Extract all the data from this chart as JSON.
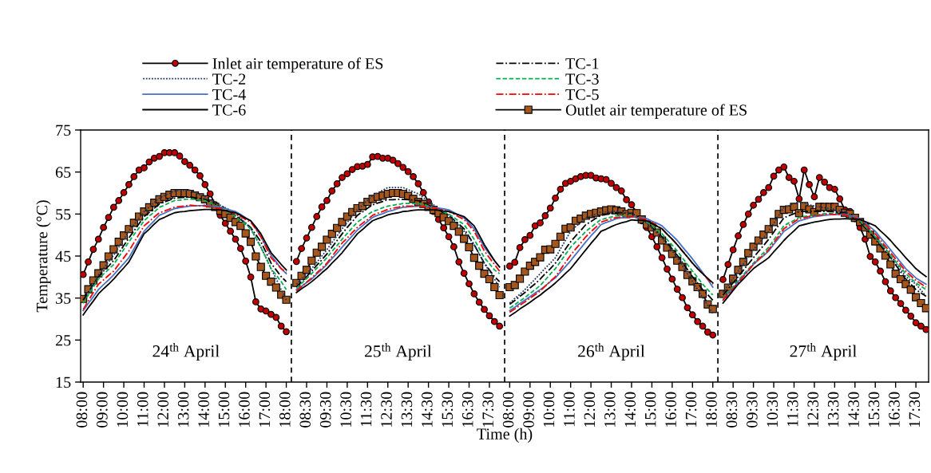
{
  "chart_data": {
    "type": "line",
    "xlabel": "Time (h)",
    "ylabel": "Temperature (°C)",
    "categories": [
      "08:00",
      null,
      null,
      null,
      "09:00",
      null,
      null,
      null,
      "10:00",
      null,
      null,
      null,
      "11:00",
      null,
      null,
      null,
      "12:00",
      null,
      null,
      null,
      "13:00",
      null,
      null,
      null,
      "14:00",
      null,
      null,
      null,
      "15:00",
      null,
      null,
      null,
      "16:00",
      null,
      null,
      null,
      "17:00",
      null,
      null,
      null,
      "18:00",
      null,
      null,
      null,
      "08:30",
      null,
      null,
      null,
      "09:30",
      null,
      null,
      null,
      "10:30",
      null,
      null,
      null,
      "11:30",
      null,
      null,
      null,
      "12:30",
      null,
      null,
      null,
      "13:30",
      null,
      null,
      null,
      "14:30",
      null,
      null,
      null,
      "15:30",
      null,
      null,
      null,
      "16:30",
      null,
      null,
      null,
      "17:30",
      null,
      null,
      null,
      "08:00",
      null,
      null,
      null,
      "09:00",
      null,
      null,
      null,
      "10:00",
      null,
      null,
      null,
      "11:00",
      null,
      null,
      null,
      "12:00",
      null,
      null,
      null,
      "13:00",
      null,
      null,
      null,
      "14:00",
      null,
      null,
      null,
      "15:00",
      null,
      null,
      null,
      "16:00",
      null,
      null,
      null,
      "17:00",
      null,
      null,
      null,
      "18:00",
      null,
      null,
      null,
      "08:30",
      null,
      null,
      null,
      "09:30",
      null,
      null,
      null,
      "10:30",
      null,
      null,
      null,
      "11:30",
      null,
      null,
      null,
      "12:30",
      null,
      null,
      null,
      "13:30",
      null,
      null,
      null,
      "14:30",
      null,
      null,
      null,
      "15:30",
      null,
      null,
      null,
      "16:30",
      null,
      null,
      null,
      "17:30",
      null,
      null
    ],
    "ylim": [
      15,
      75
    ],
    "yticks": [
      15,
      25,
      35,
      45,
      55,
      65,
      75
    ],
    "grid": false,
    "legend": "top",
    "annotations": [
      "24$^{th}$ April",
      "25$^{th}$ April",
      "26$^{th}$ April",
      "27$^{th}$ April"
    ],
    "series": [
      {
        "name": "Inlet air temperature of ES",
        "color": "#c00000",
        "marker": "circle",
        "line_style": "solid",
        "values": [
          40.6,
          43.6,
          46.6,
          49.0,
          51.8,
          54.2,
          56.6,
          58.2,
          60.1,
          62.0,
          63.9,
          65.5,
          66.0,
          67.4,
          68.3,
          68.7,
          69.6,
          69.6,
          69.6,
          68.8,
          67.5,
          66.6,
          65.5,
          64.1,
          62.0,
          59.8,
          57.2,
          54.7,
          52.8,
          50.9,
          49.0,
          46.8,
          43.8,
          40.0,
          34.1,
          32.4,
          31.9,
          31.1,
          30.4,
          28.3,
          27.0,
          null,
          43.7,
          46.8,
          49.3,
          51.8,
          54.4,
          56.7,
          58.2,
          60.5,
          62.2,
          63.7,
          64.6,
          65.6,
          66.3,
          66.4,
          66.8,
          68.6,
          68.7,
          68.3,
          68.3,
          67.8,
          67.0,
          66.1,
          65.1,
          63.9,
          62.2,
          60.1,
          57.9,
          55.6,
          53.7,
          51.7,
          49.6,
          47.2,
          43.6,
          40.9,
          38.4,
          36.0,
          34.0,
          32.3,
          30.8,
          29.4,
          28.3,
          null,
          42.6,
          43.5,
          47.0,
          48.9,
          49.9,
          52.2,
          52.9,
          54.6,
          56.4,
          58.8,
          60.9,
          62.3,
          62.8,
          63.4,
          63.9,
          64.2,
          64.2,
          63.6,
          63.4,
          63.2,
          62.3,
          61.3,
          60.5,
          58.4,
          57.2,
          55.3,
          53.4,
          51.8,
          49.6,
          47.2,
          44.6,
          41.9,
          39.5,
          37.1,
          35.1,
          32.7,
          31.0,
          29.4,
          28.3,
          26.9,
          26.2,
          null,
          39.4,
          43.0,
          46.5,
          49.8,
          52.5,
          55.0,
          57.1,
          58.5,
          60.1,
          61.3,
          64.0,
          65.5,
          66.2,
          63.7,
          62.8,
          58.6,
          65.5,
          62.0,
          59.1,
          63.7,
          62.6,
          61.3,
          60.9,
          58.6,
          56.0,
          55.6,
          53.9,
          51.8,
          49.0,
          44.9,
          43.6,
          41.4,
          38.9,
          36.7,
          35.1,
          33.7,
          32.1,
          30.7,
          29.1,
          28.3,
          27.5
        ]
      },
      {
        "name": "TC-1",
        "color": "#000000",
        "marker": "none",
        "line_style": "dashdot",
        "values": [
          34.5,
          36.4,
          38.2,
          40.1,
          41.4,
          42.6,
          43.9,
          45.7,
          47.5,
          49.3,
          51.0,
          52.7,
          54.4,
          55.4,
          56.4,
          57.4,
          57.9,
          58.3,
          58.8,
          58.9,
          59.0,
          59.1,
          58.9,
          58.7,
          58.5,
          57.9,
          57.2,
          56.6,
          56.0,
          55.3,
          54.7,
          53.7,
          52.8,
          51.8,
          50.1,
          48.4,
          45.9,
          43.3,
          41.7,
          40.1,
          38.9,
          null,
          37.6,
          38.9,
          40.1,
          41.4,
          42.8,
          44.1,
          45.5,
          47.1,
          48.7,
          50.3,
          51.8,
          53.2,
          54.7,
          55.5,
          56.4,
          57.2,
          57.6,
          58.0,
          58.4,
          58.4,
          58.5,
          58.5,
          58.4,
          58.3,
          58.2,
          57.7,
          57.1,
          56.6,
          56.0,
          55.3,
          54.7,
          53.6,
          52.6,
          51.5,
          49.6,
          47.7,
          45.5,
          43.3,
          41.7,
          40.1,
          38.9,
          null,
          33.5,
          34.4,
          35.4,
          36.3,
          37.4,
          38.4,
          39.5,
          40.8,
          42.0,
          43.3,
          45.0,
          46.7,
          48.4,
          49.8,
          51.1,
          52.5,
          53.2,
          54.0,
          54.7,
          54.9,
          55.1,
          55.3,
          55.3,
          55.2,
          55.2,
          54.5,
          53.8,
          53.1,
          51.9,
          50.8,
          49.6,
          48.1,
          46.7,
          45.2,
          43.5,
          41.8,
          40.1,
          38.6,
          37.0,
          35.8,
          34.5,
          null,
          35.7,
          37.2,
          38.6,
          40.1,
          41.6,
          43.1,
          44.6,
          46.1,
          47.5,
          49.0,
          50.7,
          52.4,
          54.1,
          54.6,
          55.1,
          55.6,
          55.6,
          55.6,
          55.6,
          55.6,
          55.6,
          55.6,
          55.5,
          55.4,
          55.3,
          54.6,
          53.8,
          53.1,
          51.7,
          50.4,
          49.0,
          47.5,
          46.1,
          44.6,
          42.9,
          41.2,
          39.5,
          38.3,
          37.0,
          36.2,
          35.4
        ]
      },
      {
        "name": "TC-2",
        "color": "#203864",
        "marker": "none",
        "line_style": "dotted",
        "values": [
          33.8,
          36.0,
          38.3,
          40.5,
          42.1,
          43.6,
          45.2,
          47.1,
          49.0,
          50.9,
          52.5,
          54.0,
          55.6,
          56.7,
          57.7,
          58.8,
          59.4,
          59.9,
          60.5,
          60.6,
          60.6,
          60.7,
          60.2,
          59.6,
          59.1,
          58.4,
          57.8,
          57.1,
          56.5,
          55.9,
          55.3,
          54.0,
          52.8,
          51.5,
          49.3,
          47.1,
          44.6,
          42.0,
          39.6,
          37.0,
          34.5,
          null,
          38.3,
          39.5,
          40.8,
          42.0,
          43.5,
          45.0,
          46.5,
          48.2,
          49.8,
          51.5,
          53.0,
          54.5,
          56.0,
          57.1,
          58.3,
          59.4,
          60.0,
          60.7,
          61.3,
          61.3,
          61.3,
          61.3,
          60.8,
          60.3,
          59.8,
          58.9,
          58.1,
          57.2,
          56.4,
          55.5,
          54.7,
          53.4,
          52.2,
          50.9,
          49.3,
          47.7,
          45.5,
          43.3,
          41.4,
          39.5,
          37.6,
          null,
          33.8,
          34.9,
          35.9,
          37.0,
          38.3,
          39.5,
          40.8,
          42.1,
          43.3,
          44.6,
          46.7,
          48.8,
          50.9,
          52.0,
          53.0,
          54.1,
          54.6,
          55.0,
          55.5,
          55.5,
          55.6,
          55.6,
          55.5,
          55.3,
          55.2,
          54.4,
          53.6,
          52.8,
          51.6,
          50.5,
          49.3,
          47.7,
          46.2,
          44.6,
          42.7,
          40.8,
          38.9,
          37.0,
          35.1,
          33.2,
          31.3,
          null,
          36.3,
          38.0,
          39.7,
          41.4,
          43.1,
          44.8,
          46.5,
          48.0,
          49.4,
          50.9,
          52.8,
          54.7,
          56.6,
          57.0,
          57.5,
          57.9,
          57.6,
          57.2,
          56.9,
          56.7,
          56.5,
          56.3,
          56.1,
          55.8,
          55.6,
          54.9,
          54.1,
          53.4,
          52.1,
          50.9,
          49.6,
          48.1,
          46.7,
          45.2,
          43.5,
          41.8,
          40.1,
          39.2,
          38.3,
          36.9,
          35.4
        ]
      },
      {
        "name": "TC-3",
        "color": "#00b050",
        "marker": "none",
        "line_style": "dashed",
        "values": [
          33.8,
          35.7,
          37.6,
          39.5,
          40.7,
          41.8,
          43.0,
          44.8,
          46.6,
          48.4,
          50.1,
          51.7,
          53.4,
          54.5,
          55.5,
          56.6,
          57.1,
          57.7,
          58.2,
          58.3,
          58.5,
          58.6,
          58.5,
          58.3,
          58.2,
          57.7,
          57.1,
          56.6,
          55.9,
          55.1,
          54.4,
          53.4,
          52.5,
          51.5,
          49.3,
          47.1,
          44.6,
          42.0,
          40.5,
          38.9,
          37.0,
          null,
          37.3,
          38.5,
          39.6,
          40.8,
          42.1,
          43.3,
          44.6,
          46.1,
          47.5,
          49.0,
          50.4,
          51.7,
          53.1,
          53.9,
          54.8,
          55.6,
          56.0,
          56.5,
          56.9,
          57.1,
          57.3,
          57.5,
          57.5,
          57.5,
          57.5,
          57.2,
          56.9,
          56.6,
          56.1,
          55.5,
          55.0,
          54.2,
          53.3,
          52.5,
          50.8,
          49.0,
          46.8,
          44.6,
          43.2,
          41.7,
          40.8,
          null,
          32.6,
          33.4,
          34.3,
          35.1,
          36.1,
          37.0,
          38.0,
          39.3,
          40.7,
          42.0,
          43.7,
          45.4,
          47.1,
          48.4,
          49.6,
          50.9,
          51.8,
          52.8,
          53.7,
          54.0,
          54.3,
          54.6,
          54.6,
          54.6,
          54.6,
          54.1,
          53.6,
          53.1,
          52.2,
          51.2,
          50.3,
          48.9,
          47.6,
          46.2,
          44.6,
          43.0,
          41.4,
          39.9,
          38.3,
          37.0,
          35.7,
          null,
          34.8,
          36.3,
          37.7,
          39.2,
          40.6,
          41.9,
          43.3,
          44.6,
          45.8,
          47.1,
          48.8,
          50.5,
          52.2,
          52.9,
          53.5,
          54.2,
          54.4,
          54.6,
          54.8,
          54.9,
          55.1,
          55.2,
          55.1,
          54.9,
          54.8,
          54.3,
          53.9,
          53.4,
          52.1,
          50.9,
          49.6,
          48.1,
          46.7,
          45.2,
          43.7,
          42.3,
          40.8,
          39.7,
          38.6,
          37.8,
          37.0
        ]
      },
      {
        "name": "TC-4",
        "color": "#4472c4",
        "marker": "none",
        "line_style": "solid",
        "values": [
          32.0,
          33.7,
          35.3,
          37.0,
          38.2,
          39.3,
          40.5,
          41.9,
          43.2,
          44.6,
          46.7,
          48.8,
          50.9,
          52.2,
          53.4,
          54.7,
          55.2,
          55.8,
          56.3,
          56.5,
          56.7,
          56.9,
          57.0,
          57.0,
          57.1,
          56.9,
          56.8,
          56.6,
          56.3,
          55.9,
          55.6,
          54.9,
          54.1,
          53.4,
          51.5,
          49.6,
          47.4,
          45.2,
          43.6,
          42.0,
          40.8,
          null,
          37.0,
          37.8,
          38.7,
          39.5,
          40.7,
          41.8,
          43.0,
          44.4,
          45.7,
          47.1,
          48.5,
          49.8,
          51.2,
          52.2,
          53.2,
          54.2,
          54.7,
          55.1,
          55.6,
          55.9,
          56.3,
          56.6,
          56.7,
          56.8,
          56.9,
          56.8,
          56.7,
          56.6,
          56.4,
          56.2,
          56.0,
          55.4,
          54.7,
          54.1,
          52.8,
          51.5,
          49.3,
          47.1,
          45.5,
          43.9,
          42.4,
          null,
          32.0,
          32.8,
          33.7,
          34.5,
          35.3,
          36.2,
          37.0,
          37.9,
          38.9,
          39.8,
          41.2,
          42.5,
          43.9,
          45.4,
          46.9,
          48.4,
          49.8,
          51.1,
          52.5,
          53.0,
          53.4,
          53.9,
          54.1,
          54.2,
          54.4,
          54.2,
          54.1,
          53.9,
          53.3,
          52.8,
          52.2,
          51.0,
          49.9,
          48.7,
          47.2,
          45.8,
          44.3,
          42.7,
          41.1,
          39.4,
          37.6,
          null,
          34.5,
          36.0,
          37.4,
          38.9,
          40.3,
          41.6,
          43.0,
          44.1,
          45.1,
          46.2,
          47.8,
          49.3,
          50.9,
          51.7,
          52.6,
          53.4,
          53.7,
          54.1,
          54.4,
          54.5,
          54.7,
          54.8,
          54.9,
          54.9,
          55.0,
          54.6,
          54.3,
          53.9,
          52.9,
          51.9,
          50.9,
          49.4,
          48.0,
          46.5,
          45.0,
          43.5,
          42.0,
          40.9,
          39.8,
          39.0,
          38.3
        ]
      },
      {
        "name": "TC-5",
        "color": "#ff0000",
        "marker": "none",
        "line_style": "dashdot",
        "values": [
          32.3,
          34.3,
          36.3,
          38.3,
          39.3,
          40.4,
          41.4,
          43.0,
          44.6,
          46.2,
          48.2,
          50.2,
          52.2,
          53.2,
          54.3,
          55.3,
          55.7,
          56.2,
          56.6,
          56.8,
          56.9,
          57.1,
          57.0,
          57.0,
          56.9,
          56.7,
          56.5,
          56.3,
          55.9,
          55.4,
          55.0,
          54.4,
          53.7,
          53.1,
          51.4,
          49.6,
          47.1,
          44.6,
          43.3,
          42.0,
          41.1,
          null,
          36.7,
          37.7,
          38.8,
          39.8,
          41.0,
          42.1,
          43.3,
          44.9,
          46.5,
          48.1,
          49.3,
          50.6,
          51.8,
          52.8,
          53.7,
          54.7,
          55.2,
          55.6,
          56.1,
          56.4,
          56.6,
          56.9,
          56.9,
          56.9,
          56.9,
          56.8,
          56.6,
          56.5,
          56.2,
          55.9,
          55.6,
          55.0,
          54.3,
          53.7,
          52.3,
          50.9,
          48.6,
          46.2,
          44.6,
          43.0,
          41.4,
          null,
          31.6,
          32.4,
          33.3,
          34.1,
          35.0,
          35.8,
          36.7,
          37.8,
          39.0,
          40.1,
          41.8,
          43.5,
          45.2,
          46.7,
          48.1,
          49.6,
          50.8,
          51.9,
          53.1,
          53.5,
          53.8,
          54.2,
          54.3,
          54.3,
          54.4,
          54.2,
          53.9,
          53.7,
          53.0,
          52.2,
          51.5,
          50.2,
          49.0,
          47.7,
          46.2,
          44.8,
          43.3,
          42.0,
          40.8,
          39.5,
          38.3,
          null,
          34.5,
          35.9,
          37.2,
          38.6,
          40.1,
          41.5,
          43.0,
          44.2,
          45.3,
          46.5,
          48.2,
          49.8,
          51.5,
          52.3,
          53.1,
          53.9,
          54.1,
          54.4,
          54.6,
          54.7,
          54.9,
          55.0,
          54.9,
          54.9,
          54.8,
          54.4,
          54.1,
          53.7,
          52.6,
          51.4,
          50.3,
          48.8,
          47.3,
          45.8,
          44.3,
          42.9,
          41.4,
          40.3,
          39.2,
          38.4,
          37.6
        ]
      },
      {
        "name": "TC-6",
        "color": "#000000",
        "marker": "none",
        "line_style": "solid",
        "values": [
          31.0,
          32.7,
          34.3,
          36.0,
          37.2,
          38.3,
          39.5,
          40.9,
          42.2,
          43.6,
          45.8,
          48.1,
          50.3,
          51.4,
          52.6,
          53.7,
          54.2,
          54.8,
          55.3,
          55.5,
          55.6,
          55.8,
          55.9,
          56.0,
          56.1,
          56.1,
          56.0,
          56.0,
          55.8,
          55.5,
          55.3,
          54.7,
          54.0,
          53.4,
          51.9,
          50.3,
          48.0,
          45.8,
          44.4,
          43.0,
          41.7,
          null,
          36.3,
          37.2,
          38.0,
          38.9,
          39.9,
          41.0,
          42.0,
          43.3,
          44.5,
          45.8,
          47.3,
          48.8,
          50.3,
          51.3,
          52.4,
          53.4,
          53.9,
          54.3,
          54.8,
          55.1,
          55.3,
          55.6,
          55.7,
          55.9,
          56.0,
          56.0,
          56.0,
          56.0,
          55.9,
          55.7,
          55.6,
          55.2,
          54.8,
          54.4,
          53.3,
          52.2,
          50.0,
          47.7,
          45.8,
          43.9,
          42.4,
          null,
          30.7,
          31.5,
          32.4,
          33.2,
          34.0,
          34.9,
          35.7,
          36.7,
          37.6,
          38.6,
          39.7,
          40.9,
          42.0,
          43.5,
          45.0,
          46.5,
          48.0,
          49.4,
          50.9,
          51.4,
          52.0,
          52.5,
          52.9,
          53.2,
          53.6,
          53.5,
          53.5,
          53.4,
          52.8,
          52.1,
          51.5,
          50.2,
          49.0,
          47.7,
          46.2,
          44.8,
          43.3,
          42.0,
          40.8,
          39.7,
          38.6,
          null,
          33.8,
          35.3,
          36.8,
          38.3,
          39.5,
          40.8,
          42.0,
          42.9,
          43.7,
          44.6,
          46.0,
          47.3,
          48.7,
          49.9,
          51.0,
          52.2,
          52.5,
          52.8,
          53.1,
          53.3,
          53.5,
          53.7,
          53.8,
          53.8,
          53.9,
          53.8,
          53.8,
          53.7,
          53.2,
          52.7,
          52.2,
          51.0,
          49.9,
          48.7,
          47.3,
          46.0,
          44.6,
          43.3,
          42.0,
          41.0,
          40.1
        ]
      },
      {
        "name": "Outlet air temperature of ES",
        "color": "#a5561c",
        "marker": "square",
        "line_style": "solid",
        "values": [
          34.8,
          37.1,
          39.2,
          40.9,
          42.8,
          44.9,
          46.6,
          48.4,
          49.9,
          51.4,
          52.9,
          54.4,
          55.6,
          56.6,
          57.7,
          58.5,
          59.1,
          59.6,
          60.0,
          60.0,
          60.0,
          59.8,
          59.4,
          59.0,
          58.5,
          57.5,
          56.7,
          55.8,
          55.0,
          54.1,
          53.1,
          52.2,
          50.4,
          48.4,
          44.9,
          42.4,
          40.3,
          38.9,
          37.5,
          35.8,
          34.6,
          null,
          38.6,
          40.3,
          41.7,
          43.9,
          45.8,
          47.2,
          48.9,
          50.3,
          51.7,
          53.1,
          54.4,
          55.5,
          56.4,
          56.9,
          57.9,
          58.6,
          59.1,
          59.4,
          59.8,
          60.0,
          60.0,
          59.8,
          59.3,
          58.6,
          57.9,
          57.4,
          56.7,
          56.0,
          55.2,
          54.2,
          53.3,
          52.2,
          50.8,
          49.1,
          47.1,
          44.6,
          42.7,
          40.8,
          39.5,
          37.6,
          35.7,
          null,
          37.6,
          38.1,
          39.6,
          41.3,
          42.7,
          43.6,
          44.7,
          46.5,
          46.6,
          47.9,
          49.6,
          51.5,
          51.8,
          53.4,
          53.9,
          54.6,
          55.0,
          55.3,
          55.6,
          55.9,
          56.1,
          55.9,
          55.6,
          55.0,
          55.3,
          55.2,
          53.7,
          52.5,
          51.8,
          50.6,
          48.7,
          47.0,
          45.5,
          43.9,
          42.4,
          40.5,
          39.0,
          37.6,
          36.0,
          33.5,
          32.4,
          null,
          36.0,
          37.5,
          39.6,
          41.7,
          43.6,
          45.7,
          47.2,
          48.7,
          50.1,
          51.4,
          53.1,
          55.0,
          56.0,
          56.1,
          56.7,
          55.2,
          56.9,
          56.1,
          55.5,
          56.7,
          56.7,
          56.7,
          56.7,
          56.0,
          55.3,
          55.0,
          54.1,
          53.1,
          51.8,
          50.1,
          48.5,
          46.8,
          45.1,
          43.0,
          40.8,
          39.5,
          38.3,
          37.0,
          35.2,
          33.8,
          32.6
        ]
      }
    ]
  }
}
